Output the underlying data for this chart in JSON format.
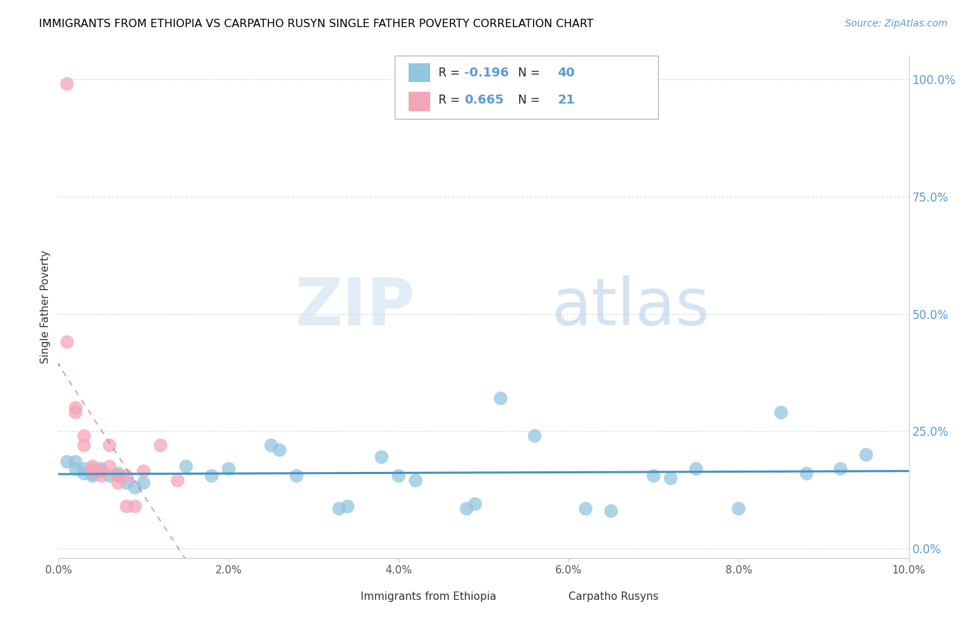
{
  "title": "IMMIGRANTS FROM ETHIOPIA VS CARPATHO RUSYN SINGLE FATHER POVERTY CORRELATION CHART",
  "source": "Source: ZipAtlas.com",
  "ylabel": "Single Father Poverty",
  "legend1_r": "-0.196",
  "legend1_n": "40",
  "legend2_r": "0.665",
  "legend2_n": "21",
  "blue_color": "#92c5de",
  "pink_color": "#f4a6b8",
  "trendline_blue": "#4393c3",
  "trendline_pink": "#d6476b",
  "watermark_zip": "ZIP",
  "watermark_atlas": "atlas",
  "blue_scatter": [
    [
      0.1,
      18.5
    ],
    [
      0.2,
      17.0
    ],
    [
      0.2,
      18.5
    ],
    [
      0.3,
      16.0
    ],
    [
      0.3,
      17.0
    ],
    [
      0.4,
      15.5
    ],
    [
      0.4,
      16.0
    ],
    [
      0.5,
      16.5
    ],
    [
      0.5,
      17.0
    ],
    [
      0.6,
      15.5
    ],
    [
      0.7,
      15.5
    ],
    [
      0.7,
      16.0
    ],
    [
      0.8,
      14.0
    ],
    [
      0.9,
      13.0
    ],
    [
      1.0,
      14.0
    ],
    [
      1.5,
      17.5
    ],
    [
      1.8,
      15.5
    ],
    [
      2.0,
      17.0
    ],
    [
      2.5,
      22.0
    ],
    [
      2.6,
      21.0
    ],
    [
      2.8,
      15.5
    ],
    [
      3.3,
      8.5
    ],
    [
      3.4,
      9.0
    ],
    [
      3.8,
      19.5
    ],
    [
      4.0,
      15.5
    ],
    [
      4.2,
      14.5
    ],
    [
      4.8,
      8.5
    ],
    [
      4.9,
      9.5
    ],
    [
      5.2,
      32.0
    ],
    [
      5.6,
      24.0
    ],
    [
      6.2,
      8.5
    ],
    [
      6.5,
      8.0
    ],
    [
      7.0,
      15.5
    ],
    [
      7.2,
      15.0
    ],
    [
      7.5,
      17.0
    ],
    [
      8.0,
      8.5
    ],
    [
      8.5,
      29.0
    ],
    [
      8.8,
      16.0
    ],
    [
      9.2,
      17.0
    ],
    [
      9.5,
      20.0
    ]
  ],
  "pink_scatter": [
    [
      0.1,
      99.0
    ],
    [
      0.1,
      44.0
    ],
    [
      0.2,
      30.0
    ],
    [
      0.2,
      29.0
    ],
    [
      0.3,
      24.0
    ],
    [
      0.3,
      22.0
    ],
    [
      0.4,
      17.5
    ],
    [
      0.4,
      17.0
    ],
    [
      0.4,
      16.5
    ],
    [
      0.5,
      16.5
    ],
    [
      0.5,
      15.5
    ],
    [
      0.6,
      22.0
    ],
    [
      0.6,
      17.5
    ],
    [
      0.7,
      15.5
    ],
    [
      0.7,
      14.0
    ],
    [
      0.8,
      15.5
    ],
    [
      0.8,
      9.0
    ],
    [
      0.9,
      9.0
    ],
    [
      1.0,
      16.5
    ],
    [
      1.2,
      22.0
    ],
    [
      1.4,
      14.5
    ]
  ],
  "xlim": [
    0.0,
    10.0
  ],
  "ylim": [
    -2.0,
    105.0
  ],
  "ytick_vals": [
    0,
    25,
    50,
    75,
    100
  ],
  "figsize": [
    14.06,
    8.92
  ],
  "dpi": 100
}
